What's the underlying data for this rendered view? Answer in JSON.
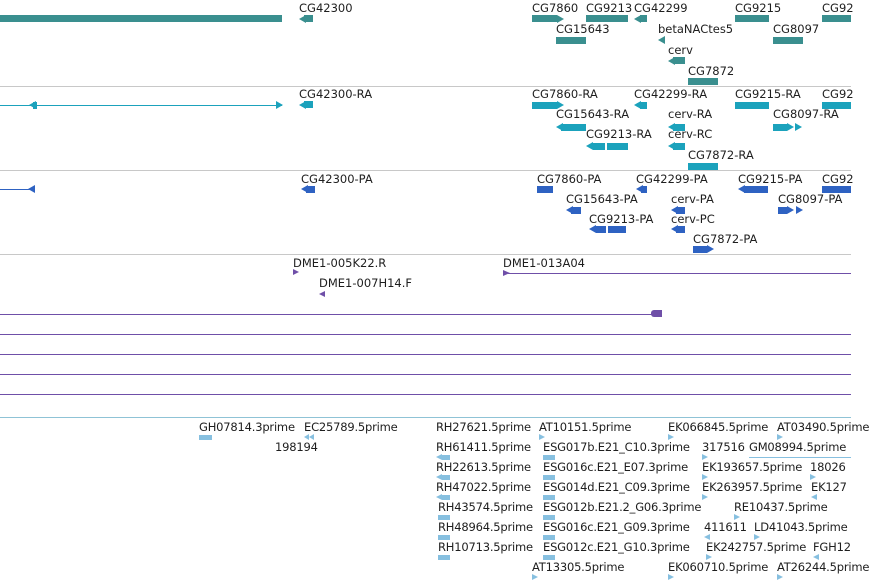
{
  "colors": {
    "gene": "#3a8f8f",
    "transcript": "#1ba2bc",
    "protein": "#2e62c2",
    "clone": "#6f4fa8",
    "est": "#87c0e0",
    "separator": "#c8c8c8"
  },
  "tracks": {
    "gene": {
      "labels": [
        "CG42300",
        "CG7860",
        "CG9213",
        "CG42299",
        "CG9215",
        "CG92",
        "CG15643",
        "betaNACtes5",
        "CG8097",
        "cerv",
        "CG7872"
      ]
    },
    "transcript": {
      "labels": [
        "CG42300-RA",
        "CG7860-RA",
        "CG42299-RA",
        "CG9215-RA",
        "CG92",
        "CG15643-RA",
        "cerv-RA",
        "CG8097-RA",
        "CG9213-RA",
        "cerv-RC",
        "CG7872-RA"
      ]
    },
    "protein": {
      "labels": [
        "CG42300-PA",
        "CG7860-PA",
        "CG42299-PA",
        "CG9215-PA",
        "CG92",
        "CG15643-PA",
        "cerv-PA",
        "CG8097-PA",
        "CG9213-PA",
        "cerv-PC",
        "CG7872-PA"
      ]
    },
    "clone": {
      "labels": [
        "DME1-005K22.R",
        "DME1-013A04",
        "DME1-007H14.F"
      ]
    },
    "est": {
      "labels": [
        "GH07814.3prime",
        "EC25789.5prime",
        "RH27621.5prime",
        "AT10151.5prime",
        "EK066845.5prime",
        "AT03490.5prime",
        "198194",
        "RH61411.5prime",
        "ESG017b.E21_C10.3prime",
        "317516",
        "GM08994.5prime",
        "RH22613.5prime",
        "ESG016c.E21_E07.3prime",
        "EK193657.5prime",
        "18026",
        "RH47022.5prime",
        "ESG014d.E21_C09.3prime",
        "EK263957.5prime",
        "EK127",
        "RH43574.5prime",
        "ESG012b.E21.2_G06.3prime",
        "RE10437.5prime",
        "RH48964.5prime",
        "ESG016c.E21_G09.3prime",
        "411611",
        "LD41043.5prime",
        "RH10713.5prime",
        "ESG012c.E21_G10.3prime",
        "EK242757.5prime",
        "FGH12",
        "AT13305.5prime",
        "EK060710.5prime",
        "AT26244.5prime"
      ]
    }
  }
}
